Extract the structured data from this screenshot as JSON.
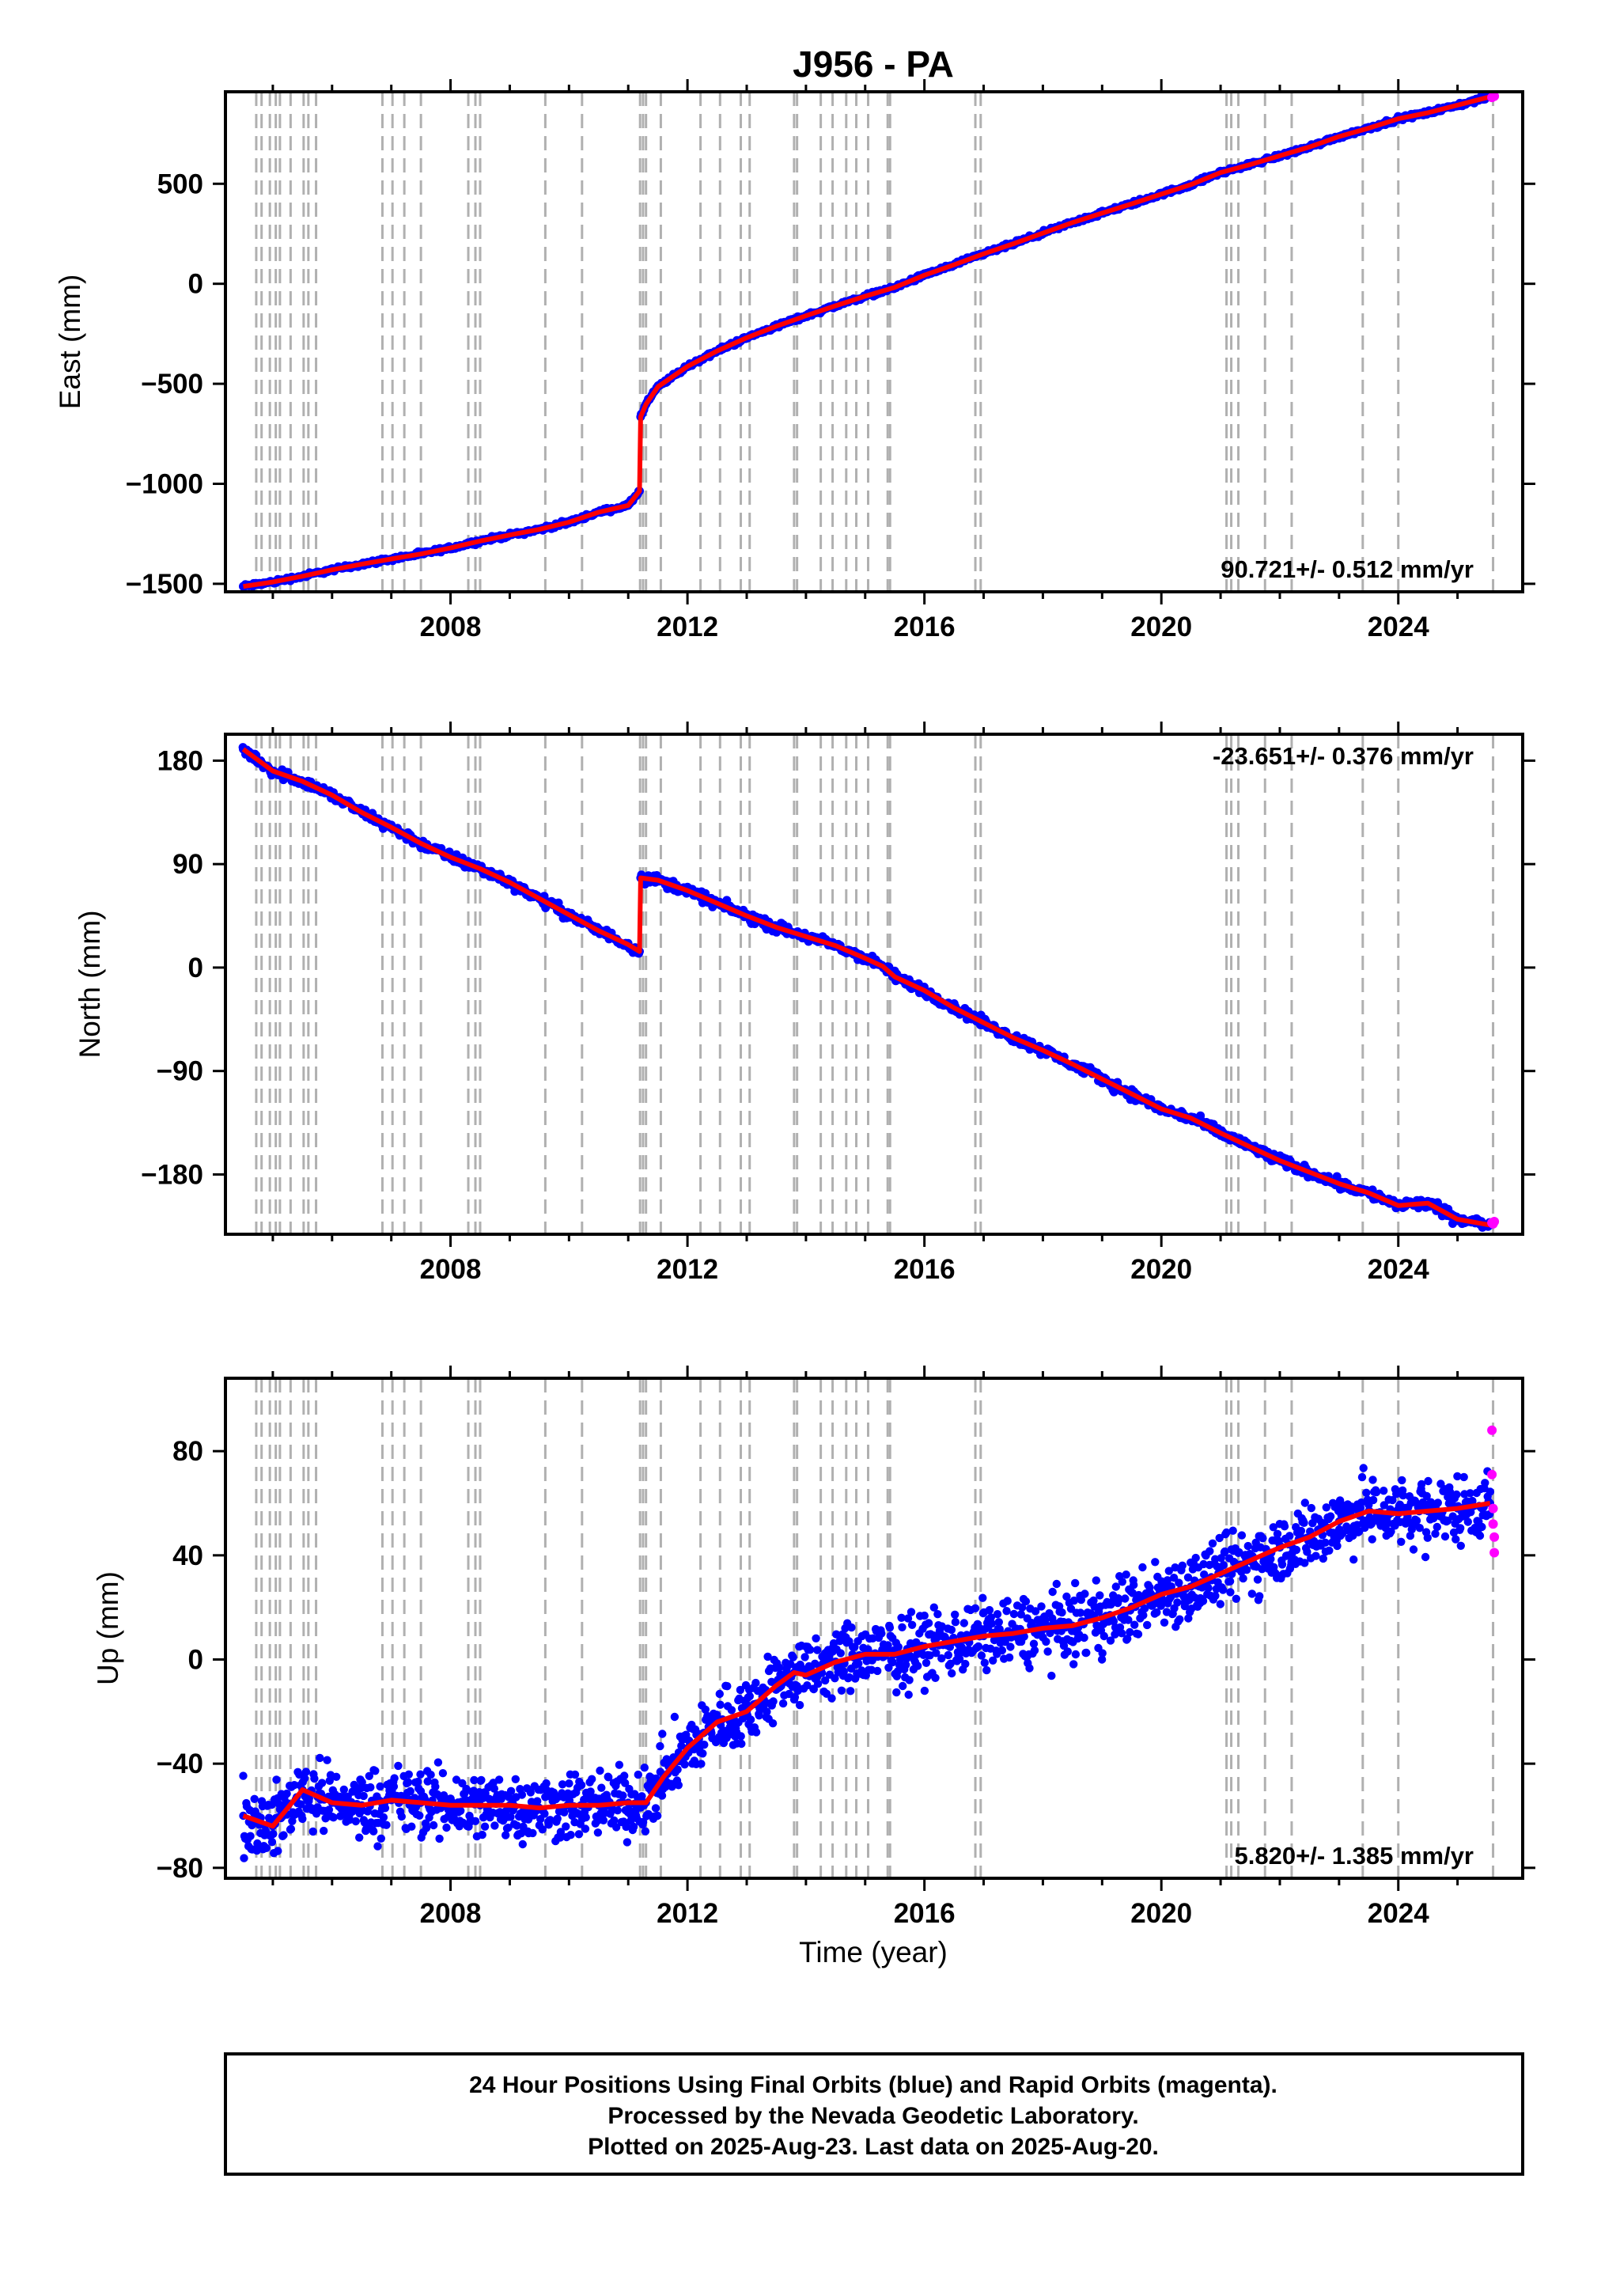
{
  "title": "J956 - PA",
  "colors": {
    "final_orbits": "#0000ff",
    "rapid_orbits": "#ff00ff",
    "model_fit": "#ff0000",
    "event_lines": "#b0b0b0",
    "frame": "#000000"
  },
  "xaxis": {
    "label": "Time (year)",
    "range": [
      2004.2,
      2026.1
    ],
    "ticks": [
      "2008",
      "2012",
      "2016",
      "2020",
      "2024"
    ],
    "tick_values": [
      2008,
      2012,
      2016,
      2020,
      2024
    ]
  },
  "event_lines": [
    2004.72,
    2004.81,
    2004.95,
    2005.05,
    2005.12,
    2005.3,
    2005.52,
    2005.6,
    2005.73,
    2006.85,
    2007.02,
    2007.22,
    2007.5,
    2008.3,
    2008.42,
    2008.5,
    2009.6,
    2010.22,
    2011.2,
    2011.25,
    2011.3,
    2011.55,
    2012.22,
    2012.55,
    2012.9,
    2013.05,
    2013.8,
    2013.85,
    2014.25,
    2014.45,
    2014.68,
    2014.85,
    2015.05,
    2015.38,
    2015.42,
    2016.86,
    2016.95,
    2021.1,
    2021.18,
    2021.3,
    2021.75,
    2022.2,
    2023.4,
    2024.0,
    2025.6
  ],
  "chart_data": [
    {
      "type": "scatter",
      "component": "East",
      "ylabel": "East (mm)",
      "ylim": [
        -1540,
        960
      ],
      "yticks": [
        "-1500",
        "-1000",
        "-500",
        "0",
        "500"
      ],
      "ytick_values": [
        -1500,
        -1000,
        -500,
        0,
        500
      ],
      "rate": "90.721+/- 0.512 mm/yr",
      "rate_position": "bottom-right",
      "series": [
        {
          "role": "final_orbits",
          "x": [
            2004.5,
            2005.0,
            2005.5,
            2006.0,
            2006.5,
            2007.0,
            2007.5,
            2008.0,
            2008.5,
            2009.0,
            2009.5,
            2010.0,
            2010.5,
            2011.0,
            2011.19,
            2011.21,
            2011.3,
            2011.5,
            2012.0,
            2012.5,
            2013.0,
            2013.5,
            2014.0,
            2014.5,
            2015.0,
            2015.5,
            2016.0,
            2016.5,
            2017.0,
            2017.5,
            2018.0,
            2018.5,
            2019.0,
            2019.5,
            2020.0,
            2020.5,
            2021.0,
            2021.5,
            2022.0,
            2022.5,
            2023.0,
            2023.5,
            2024.0,
            2024.5,
            2025.0,
            2025.55
          ],
          "y": [
            -1513,
            -1491,
            -1462,
            -1430,
            -1402,
            -1376,
            -1351,
            -1321,
            -1286,
            -1256,
            -1228,
            -1192,
            -1142,
            -1108,
            -1036,
            -665,
            -602,
            -515,
            -413,
            -336,
            -270,
            -212,
            -160,
            -110,
            -62,
            -18,
            43,
            95,
            150,
            200,
            253,
            306,
            353,
            400,
            448,
            496,
            556,
            596,
            640,
            684,
            736,
            778,
            825,
            855,
            893,
            935
          ]
        },
        {
          "role": "rapid_orbits",
          "x": [
            2025.58,
            2025.6,
            2025.62
          ],
          "y": [
            932,
            936,
            938
          ]
        }
      ]
    },
    {
      "type": "scatter",
      "component": "North",
      "ylabel": "North (mm)",
      "ylim": [
        -232,
        203
      ],
      "yticks": [
        "-180",
        "-90",
        "0",
        "90",
        "180"
      ],
      "ytick_values": [
        -180,
        -90,
        0,
        90,
        180
      ],
      "rate": "-23.651+/- 0.376 mm/yr",
      "rate_position": "top-right",
      "series": [
        {
          "role": "final_orbits",
          "x": [
            2004.5,
            2005.0,
            2005.5,
            2006.0,
            2006.5,
            2007.0,
            2007.5,
            2008.0,
            2008.5,
            2009.0,
            2009.5,
            2010.0,
            2010.5,
            2011.0,
            2011.19,
            2011.21,
            2011.5,
            2012.0,
            2012.5,
            2013.0,
            2013.5,
            2014.0,
            2014.5,
            2015.0,
            2015.3,
            2015.5,
            2016.0,
            2016.5,
            2017.0,
            2017.5,
            2018.0,
            2018.5,
            2019.0,
            2019.5,
            2020.0,
            2020.5,
            2021.0,
            2021.5,
            2022.0,
            2022.5,
            2023.0,
            2023.5,
            2024.0,
            2024.5,
            2025.0,
            2025.55
          ],
          "y": [
            190,
            171,
            162,
            150,
            135,
            122,
            108,
            96,
            86,
            74,
            60,
            46,
            32,
            20,
            14,
            78,
            76,
            67,
            56,
            45,
            35,
            27,
            19,
            8,
            1,
            -8,
            -20,
            -35,
            -48,
            -61,
            -72,
            -84,
            -97,
            -110,
            -123,
            -131,
            -144,
            -156,
            -168,
            -178,
            -188,
            -196,
            -207,
            -205,
            -219,
            -224
          ]
        },
        {
          "role": "rapid_orbits",
          "x": [
            2025.58,
            2025.6,
            2025.62
          ],
          "y": [
            -222,
            -223,
            -221
          ]
        }
      ]
    },
    {
      "type": "scatter",
      "component": "Up",
      "ylabel": "Up (mm)",
      "ylim": [
        -84,
        108
      ],
      "yticks": [
        "-80",
        "-40",
        "0",
        "40",
        "80"
      ],
      "ytick_values": [
        -80,
        -40,
        0,
        40,
        80
      ],
      "rate": "5.820+/- 1.385 mm/yr",
      "rate_position": "bottom-right",
      "series": [
        {
          "role": "final_orbits",
          "x": [
            2004.5,
            2005.0,
            2005.5,
            2006.0,
            2006.5,
            2007.0,
            2007.5,
            2008.0,
            2008.5,
            2009.0,
            2009.5,
            2010.0,
            2010.5,
            2011.0,
            2011.3,
            2011.6,
            2012.0,
            2012.5,
            2013.0,
            2013.5,
            2013.8,
            2014.0,
            2014.5,
            2015.0,
            2015.5,
            2016.0,
            2016.5,
            2017.0,
            2017.5,
            2018.0,
            2018.5,
            2019.0,
            2019.5,
            2020.0,
            2020.5,
            2021.0,
            2021.5,
            2022.0,
            2022.5,
            2023.0,
            2023.5,
            2024.0,
            2024.5,
            2025.0,
            2025.55
          ],
          "y": [
            -60,
            -64,
            -50,
            -55,
            -56,
            -54,
            -55,
            -56,
            -56,
            -56,
            -57,
            -56,
            -56,
            -55,
            -55,
            -45,
            -34,
            -24,
            -20,
            -10,
            -5,
            -6,
            -1,
            2,
            2,
            5,
            7,
            9,
            10,
            12,
            13,
            16,
            20,
            25,
            28,
            33,
            38,
            43,
            47,
            53,
            57,
            56,
            57,
            58,
            60
          ]
        },
        {
          "role": "rapid_orbits",
          "x": [
            2025.58,
            2025.58,
            2025.6,
            2025.6,
            2025.62,
            2025.62
          ],
          "y": [
            88,
            71,
            58,
            52,
            47,
            41
          ]
        }
      ]
    }
  ],
  "footer": {
    "line1": "24 Hour Positions Using Final Orbits (blue) and Rapid Orbits (magenta).",
    "line2": "Processed by the Nevada Geodetic Laboratory.",
    "line3": "Plotted on 2025-Aug-23. Last data on 2025-Aug-20."
  }
}
